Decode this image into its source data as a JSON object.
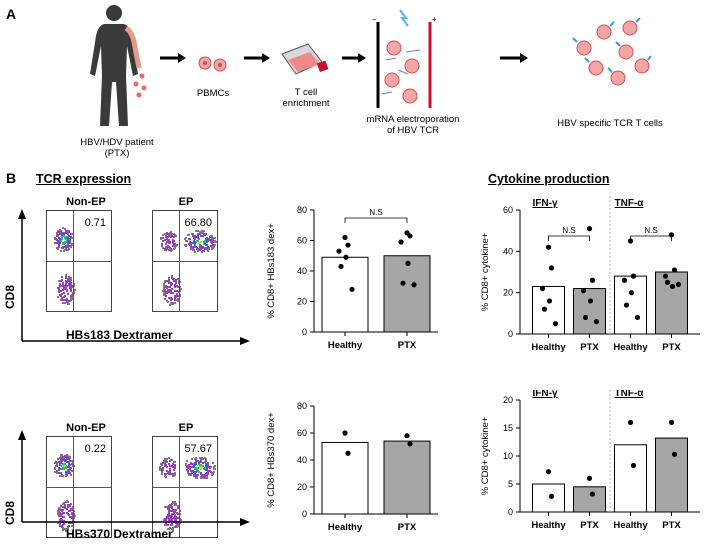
{
  "panel_a": {
    "label": "A",
    "patient_caption_1": "HBV/HDV patient",
    "patient_caption_2": "(PTX)",
    "pbmcs": "PBMCs",
    "tcell_1": "T cell",
    "tcell_2": "enrichment",
    "mrna_1": "mRNA electroporation",
    "mrna_2": "of HBV TCR",
    "specific": "HBV specific TCR T cells"
  },
  "panel_b": {
    "label": "B",
    "tcr_header": "TCR expression",
    "cytokine_header": "Cytokine production",
    "flow_row1": {
      "nonep_title": "Non-EP",
      "nonep_value": "0.71",
      "ep_title": "EP",
      "ep_value": "66.80",
      "y_label": "CD8",
      "x_label": "HBs183 Dextramer"
    },
    "flow_row2": {
      "nonep_title": "Non-EP",
      "nonep_value": "0.22",
      "ep_title": "EP",
      "ep_value": "57.67",
      "y_label": "CD8",
      "x_label": "HBs370 Dextramer"
    }
  },
  "chart_data": [
    {
      "type": "bar",
      "id": "hbs183",
      "ylabel": "% CD8+ HBs183 dex+",
      "ylim": [
        0,
        80
      ],
      "yticks": [
        "0",
        "20",
        "40",
        "60",
        "80"
      ],
      "categories": [
        "Healthy",
        "PTX"
      ],
      "values": [
        49,
        50
      ],
      "points": [
        [
          62,
          57,
          53,
          49,
          43,
          28
        ],
        [
          65,
          63,
          59,
          45,
          32,
          31
        ]
      ],
      "annotations": [
        {
          "text": "N.S",
          "between": [
            "Healthy",
            "PTX"
          ]
        }
      ]
    },
    {
      "type": "bar",
      "id": "cytokine183",
      "ylabel": "% CD8+ cytokine+",
      "ylim": [
        0,
        60
      ],
      "yticks": [
        "0",
        "20",
        "40",
        "60"
      ],
      "groups": [
        "IFN-γ",
        "TNF-α"
      ],
      "categories": [
        "Healthy",
        "PTX",
        "Healthy",
        "PTX"
      ],
      "values": [
        23,
        22,
        28,
        30
      ],
      "points": [
        [
          42,
          32,
          22,
          16,
          12,
          5
        ],
        [
          51,
          26,
          21,
          16,
          8,
          6
        ],
        [
          45,
          28,
          26,
          20,
          14,
          8
        ],
        [
          48,
          31,
          28,
          23,
          25,
          24
        ]
      ],
      "annotations": [
        {
          "text": "N.S",
          "group": "IFN-γ"
        },
        {
          "text": "N.S",
          "group": "TNF-α"
        }
      ]
    },
    {
      "type": "bar",
      "id": "hbs370",
      "ylabel": "% CD8+ HBs370 dex+",
      "ylim": [
        0,
        80
      ],
      "yticks": [
        "0",
        "20",
        "40",
        "60",
        "80"
      ],
      "categories": [
        "Healthy",
        "PTX"
      ],
      "values": [
        53,
        54
      ],
      "points": [
        [
          60,
          45
        ],
        [
          58,
          52
        ]
      ]
    },
    {
      "type": "bar",
      "id": "cytokine370",
      "ylabel": "% CD8+ cytokine+",
      "ylim": [
        0,
        20
      ],
      "yticks": [
        "0",
        "5",
        "10",
        "15",
        "20"
      ],
      "groups": [
        "IFN-γ",
        "TNF-α"
      ],
      "categories": [
        "Healthy",
        "PTX",
        "Healthy",
        "PTX"
      ],
      "values": [
        5,
        4.5,
        12,
        13.2
      ],
      "points": [
        [
          7.2,
          2.8
        ],
        [
          6.0,
          3.2
        ],
        [
          16,
          8.3
        ],
        [
          16,
          10.3
        ]
      ]
    }
  ],
  "colors": {
    "healthy": "#ffffff",
    "ptx": "#a6a6a6",
    "cell": "#e86a6a"
  }
}
